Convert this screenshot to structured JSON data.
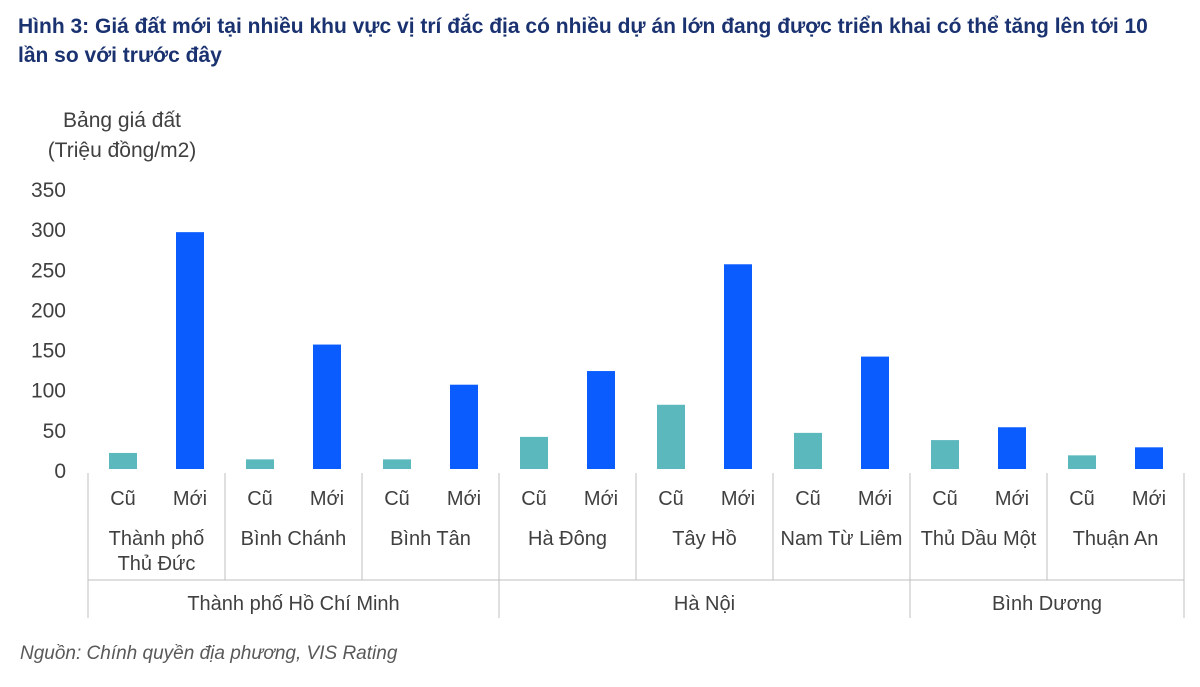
{
  "title": "Hình 3: Giá đất mới tại nhiều khu vực vị trí đắc địa có nhiều dự án lớn đang được triển khai có thể tăng lên tới 10 lần so với trước đây",
  "source": "Nguồn: Chính quyền địa phương, VIS Rating",
  "colors": {
    "old": "#5bb8bd",
    "new": "#0a5cff",
    "title": "#1a3270",
    "axis": "#bfbfbf"
  },
  "chart_data": {
    "type": "bar",
    "ylabel": [
      "Bảng giá đất",
      "(Triệu đồng/m2)"
    ],
    "ylim": [
      0,
      350
    ],
    "yticks": [
      0,
      50,
      100,
      150,
      200,
      250,
      300,
      350
    ],
    "grid": false,
    "series_labels": [
      "Cũ",
      "Mới"
    ],
    "groups": [
      {
        "name": "Thành phố Hồ Chí Minh",
        "districts": [
          {
            "name": [
              "Thành phố",
              "Thủ Đức"
            ],
            "old": 20,
            "new": 295
          },
          {
            "name": [
              "Bình Chánh"
            ],
            "old": 12,
            "new": 155
          },
          {
            "name": [
              "Bình Tân"
            ],
            "old": 12,
            "new": 105
          }
        ]
      },
      {
        "name": "Hà Nội",
        "districts": [
          {
            "name": [
              "Hà Đông"
            ],
            "old": 40,
            "new": 122
          },
          {
            "name": [
              "Tây Hồ"
            ],
            "old": 80,
            "new": 255
          },
          {
            "name": [
              "Nam Từ Liêm"
            ],
            "old": 45,
            "new": 140
          }
        ]
      },
      {
        "name": "Bình Dương",
        "districts": [
          {
            "name": [
              "Thủ Dầu Một"
            ],
            "old": 36,
            "new": 52
          },
          {
            "name": [
              "Thuận An"
            ],
            "old": 17,
            "new": 27
          }
        ]
      }
    ]
  }
}
